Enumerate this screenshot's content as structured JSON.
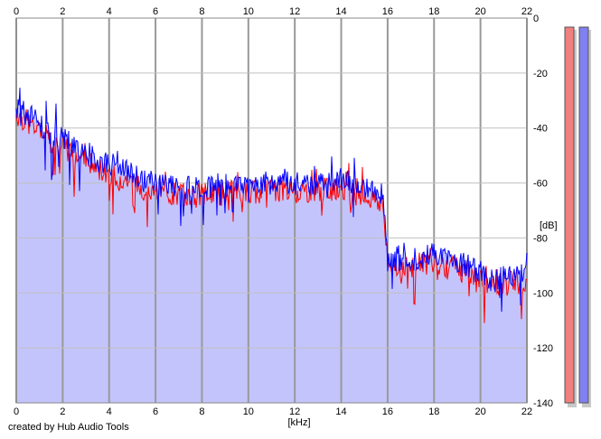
{
  "credit": "created by Hub Audio Tools",
  "chart_data": {
    "type": "area",
    "xlabel": "[kHz]",
    "ylabel": "[dB]",
    "xlim": [
      0,
      22
    ],
    "ylim": [
      -140,
      0
    ],
    "x_ticks": [
      "0",
      "2",
      "4",
      "6",
      "8",
      "10",
      "12",
      "14",
      "16",
      "18",
      "20",
      "22"
    ],
    "y_ticks": [
      "0",
      "-20",
      "-40",
      "-60",
      "-80",
      "-100",
      "-120",
      "-140"
    ],
    "grid": true,
    "series": [
      {
        "color": "#ff0000",
        "x": [
          0,
          0.5,
          1,
          1.5,
          2,
          2.5,
          3,
          3.5,
          4,
          4.5,
          5,
          5.5,
          6,
          6.5,
          7,
          7.5,
          8,
          8.5,
          9,
          9.5,
          10,
          10.5,
          11,
          11.5,
          12,
          12.5,
          13,
          13.5,
          14,
          14.5,
          15,
          15.5,
          15.8,
          16,
          16.5,
          17,
          17.5,
          18,
          18.5,
          19,
          19.5,
          20,
          20.5,
          21,
          21.5,
          22
        ],
        "y": [
          -35,
          -38,
          -42,
          -45,
          -47,
          -50,
          -52,
          -55,
          -56,
          -58,
          -60,
          -62,
          -63,
          -64,
          -64,
          -65,
          -64,
          -64,
          -64,
          -63,
          -63,
          -63,
          -63,
          -62,
          -63,
          -63,
          -63,
          -62,
          -63,
          -64,
          -65,
          -66,
          -68,
          -90,
          -90,
          -90,
          -89,
          -89,
          -90,
          -91,
          -93,
          -96,
          -97,
          -97,
          -96,
          -96
        ]
      },
      {
        "color": "#0000ff",
        "x": [
          0,
          0.5,
          1,
          1.5,
          2,
          2.5,
          3,
          3.5,
          4,
          4.5,
          5,
          5.5,
          6,
          6.5,
          7,
          7.5,
          8,
          8.5,
          9,
          9.5,
          10,
          10.5,
          11,
          11.5,
          12,
          12.5,
          13,
          13.5,
          14,
          14.5,
          15,
          15.5,
          15.8,
          16,
          16.5,
          17,
          17.5,
          18,
          18.5,
          19,
          19.5,
          20,
          20.5,
          21,
          21.5,
          22
        ],
        "y": [
          -32,
          -35,
          -39,
          -42,
          -44,
          -47,
          -49,
          -52,
          -53,
          -55,
          -57,
          -59,
          -60,
          -61,
          -61,
          -62,
          -61,
          -61,
          -61,
          -60,
          -60,
          -60,
          -60,
          -59,
          -60,
          -60,
          -60,
          -59,
          -59,
          -60,
          -61,
          -63,
          -65,
          -88,
          -88,
          -88,
          -87,
          -86,
          -87,
          -88,
          -90,
          -94,
          -95,
          -95,
          -94,
          -93
        ]
      }
    ],
    "fill_color": "#c4c4fc",
    "level_meters": [
      {
        "color": "#f08080"
      },
      {
        "color": "#8080f0"
      }
    ]
  }
}
